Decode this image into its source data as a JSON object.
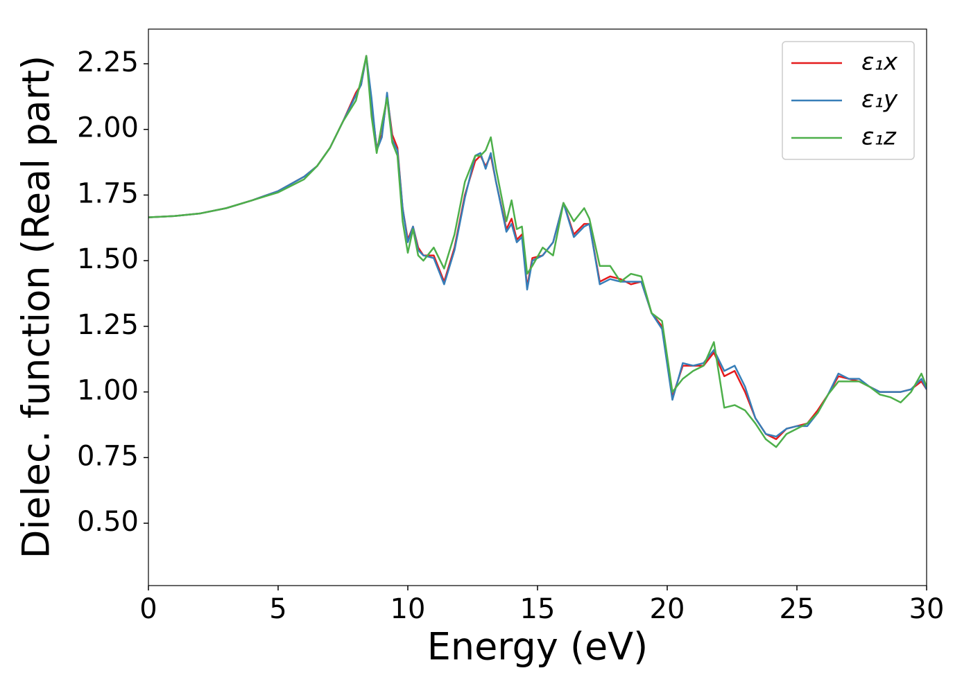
{
  "chart_data": {
    "type": "line",
    "xlabel": "Energy (eV)",
    "ylabel": "Dielec. function (Real part)",
    "x": [
      0,
      1,
      2,
      3,
      4,
      5,
      6,
      6.5,
      7,
      7.5,
      8,
      8.2,
      8.4,
      8.6,
      8.8,
      9.0,
      9.2,
      9.4,
      9.6,
      9.8,
      10.0,
      10.2,
      10.4,
      10.6,
      11.0,
      11.4,
      11.8,
      12.2,
      12.6,
      12.8,
      13.0,
      13.2,
      13.4,
      13.8,
      14.0,
      14.2,
      14.4,
      14.6,
      14.8,
      15.2,
      15.6,
      16.0,
      16.4,
      16.8,
      17.0,
      17.4,
      17.8,
      18.2,
      18.6,
      19.0,
      19.4,
      19.8,
      20.2,
      20.6,
      21.0,
      21.4,
      21.8,
      22.2,
      22.6,
      23.0,
      23.4,
      23.8,
      24.2,
      24.6,
      25.0,
      25.4,
      25.8,
      26.2,
      26.6,
      27.0,
      27.4,
      27.8,
      28.2,
      28.6,
      29.0,
      29.4,
      29.8,
      30
    ],
    "series": [
      {
        "name": "ε₁x",
        "color": "#e41a1c",
        "values": [
          1.665,
          1.67,
          1.68,
          1.7,
          1.73,
          1.765,
          1.82,
          1.86,
          1.93,
          2.03,
          2.14,
          2.17,
          2.28,
          2.1,
          1.93,
          1.98,
          2.13,
          1.98,
          1.93,
          1.7,
          1.58,
          1.63,
          1.55,
          1.52,
          1.52,
          1.42,
          1.55,
          1.75,
          1.88,
          1.9,
          1.86,
          1.9,
          1.8,
          1.62,
          1.66,
          1.58,
          1.6,
          1.4,
          1.51,
          1.52,
          1.57,
          1.72,
          1.6,
          1.64,
          1.64,
          1.42,
          1.44,
          1.43,
          1.41,
          1.42,
          1.3,
          1.25,
          0.98,
          1.1,
          1.1,
          1.1,
          1.15,
          1.06,
          1.08,
          1.0,
          0.9,
          0.84,
          0.82,
          0.86,
          0.87,
          0.88,
          0.93,
          0.99,
          1.06,
          1.05,
          1.04,
          1.02,
          1.0,
          1.0,
          1.0,
          1.01,
          1.04,
          1.01
        ]
      },
      {
        "name": "ε₁y",
        "color": "#377eb8",
        "values": [
          1.665,
          1.67,
          1.68,
          1.7,
          1.73,
          1.765,
          1.82,
          1.86,
          1.93,
          2.03,
          2.13,
          2.17,
          2.28,
          2.12,
          1.92,
          1.97,
          2.14,
          1.96,
          1.92,
          1.7,
          1.57,
          1.63,
          1.54,
          1.52,
          1.51,
          1.41,
          1.54,
          1.74,
          1.9,
          1.91,
          1.85,
          1.91,
          1.8,
          1.61,
          1.64,
          1.57,
          1.59,
          1.39,
          1.5,
          1.52,
          1.57,
          1.72,
          1.59,
          1.63,
          1.64,
          1.41,
          1.43,
          1.42,
          1.42,
          1.42,
          1.3,
          1.24,
          0.97,
          1.11,
          1.1,
          1.11,
          1.16,
          1.08,
          1.1,
          1.02,
          0.9,
          0.84,
          0.83,
          0.86,
          0.87,
          0.87,
          0.92,
          0.99,
          1.07,
          1.05,
          1.05,
          1.02,
          1.0,
          1.0,
          1.0,
          1.01,
          1.05,
          1.01
        ]
      },
      {
        "name": "ε₁z",
        "color": "#4daf4a",
        "values": [
          1.665,
          1.67,
          1.68,
          1.7,
          1.73,
          1.76,
          1.81,
          1.86,
          1.93,
          2.03,
          2.11,
          2.19,
          2.28,
          2.05,
          1.91,
          2.02,
          2.12,
          1.95,
          1.9,
          1.65,
          1.53,
          1.62,
          1.52,
          1.5,
          1.55,
          1.47,
          1.6,
          1.8,
          1.9,
          1.9,
          1.92,
          1.97,
          1.85,
          1.65,
          1.73,
          1.62,
          1.63,
          1.45,
          1.48,
          1.55,
          1.52,
          1.72,
          1.65,
          1.7,
          1.66,
          1.48,
          1.48,
          1.42,
          1.45,
          1.44,
          1.3,
          1.27,
          1.0,
          1.05,
          1.08,
          1.1,
          1.19,
          0.94,
          0.95,
          0.93,
          0.88,
          0.82,
          0.79,
          0.84,
          0.86,
          0.88,
          0.92,
          0.99,
          1.04,
          1.04,
          1.04,
          1.02,
          0.99,
          0.98,
          0.96,
          1.0,
          1.07,
          1.02
        ]
      }
    ],
    "xlim": [
      0,
      30
    ],
    "xticks": [
      0,
      5,
      10,
      15,
      20,
      25,
      30
    ],
    "ylim": [
      0.2625,
      2.382
    ],
    "yticks": [
      {
        "value": 0.5,
        "label": "0.50"
      },
      {
        "value": 0.75,
        "label": "0.75"
      },
      {
        "value": 1.0,
        "label": "1.00"
      },
      {
        "value": 1.25,
        "label": "1.25"
      },
      {
        "value": 1.5,
        "label": "1.50"
      },
      {
        "value": 1.75,
        "label": "1.75"
      },
      {
        "value": 2.0,
        "label": "2.00"
      },
      {
        "value": 2.25,
        "label": "2.25"
      }
    ],
    "legend": "upper right",
    "grid": false
  }
}
